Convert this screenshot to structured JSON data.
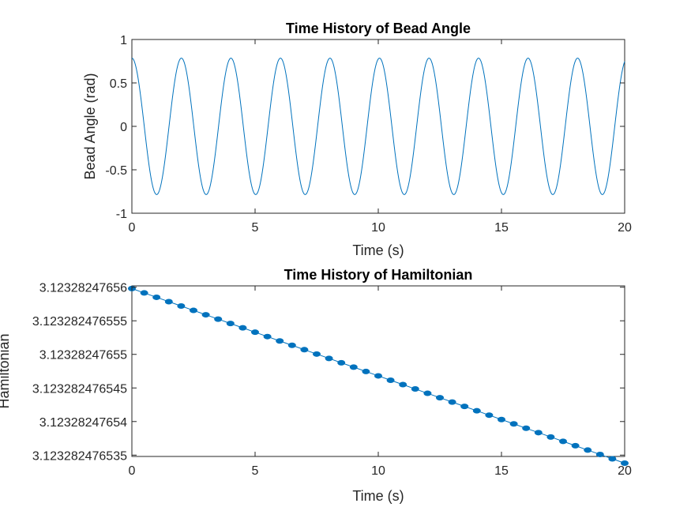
{
  "chart_data": [
    {
      "type": "line",
      "title": "Time History of Bead Angle",
      "xlabel": "Time (s)",
      "ylabel": "Bead Angle (rad)",
      "xlim": [
        0,
        20
      ],
      "ylim": [
        -1,
        1
      ],
      "xticks": [
        0,
        5,
        10,
        15,
        20
      ],
      "xtick_labels": [
        "0",
        "5",
        "10",
        "15",
        "20"
      ],
      "yticks": [
        -1,
        -0.5,
        0,
        0.5,
        1
      ],
      "ytick_labels": [
        "-1",
        "-0.5",
        "0",
        "0.5",
        "1"
      ],
      "grid": false,
      "series": [
        {
          "color": "#0072BD",
          "amplitude": 0.785,
          "period": 2.01,
          "x": [
            0,
            0.5,
            1.0,
            1.5,
            2.0,
            2.5,
            3.0,
            3.5,
            4.0,
            4.5,
            5.0,
            5.5,
            6.0,
            6.5,
            7.0,
            7.5,
            8.0,
            8.5,
            9.0,
            9.5,
            10.0,
            10.5,
            11.0,
            11.5,
            12.0,
            12.5,
            13.0,
            13.5,
            14.0,
            14.5,
            15.0,
            15.5,
            16.0,
            16.5,
            17.0,
            17.5,
            18.0,
            18.5,
            19.0,
            19.5,
            20.0
          ],
          "y": [
            0.785,
            0.0,
            -0.785,
            0.0,
            0.785,
            0.0,
            -0.785,
            0.0,
            0.785,
            0.0,
            -0.785,
            0.0,
            0.785,
            0.0,
            -0.785,
            0.0,
            0.785,
            0.0,
            -0.785,
            0.0,
            0.785,
            0.0,
            -0.785,
            0.0,
            0.785,
            0.0,
            -0.785,
            0.0,
            0.785,
            0.0,
            -0.785,
            0.0,
            0.785,
            0.0,
            -0.785,
            0.0,
            0.785,
            0.0,
            -0.785,
            0.0,
            0.785
          ]
        }
      ]
    },
    {
      "type": "line",
      "title": "Time History of Hamiltonian",
      "xlabel": "Time (s)",
      "ylabel": "Hamiltonian",
      "xlim": [
        0,
        20
      ],
      "ylim": [
        3.1232824765348,
        3.1232824765602
      ],
      "xticks": [
        0,
        5,
        10,
        15,
        20
      ],
      "xtick_labels": [
        "0",
        "5",
        "10",
        "15",
        "20"
      ],
      "yticks": [
        3.12328247654,
        3.123282476545,
        3.12328247655,
        3.123282476555,
        3.12328247656
      ],
      "ytick_labels": [
        "3.12328247654",
        "3.123282476545",
        "3.12328247655",
        "3.123282476555",
        "3.12328247656"
      ],
      "ytick_extra": {
        "value": 3.123282476535,
        "label": "3.123282476535"
      },
      "grid": false,
      "series": [
        {
          "color": "#0072BD",
          "marker": "dot",
          "x": [
            0,
            0.5,
            1.0,
            1.5,
            2.0,
            2.5,
            3.0,
            3.5,
            4.0,
            4.5,
            5.0,
            5.5,
            6.0,
            6.5,
            7.0,
            7.5,
            8.0,
            8.5,
            9.0,
            9.5,
            10.0,
            10.5,
            11.0,
            11.5,
            12.0,
            12.5,
            13.0,
            13.5,
            14.0,
            14.5,
            15.0,
            15.5,
            16.0,
            16.5,
            17.0,
            17.5,
            18.0,
            18.5,
            19.0,
            19.5,
            20.0
          ],
          "y": [
            3.1232824765598,
            3.12328247655915,
            3.1232824765585,
            3.12328247655785,
            3.1232824765572,
            3.12328247655655,
            3.1232824765559,
            3.12328247655525,
            3.1232824765546,
            3.12328247655395,
            3.1232824765533,
            3.12328247655265,
            3.123282476552,
            3.12328247655135,
            3.1232824765507,
            3.12328247655005,
            3.1232824765494,
            3.12328247654875,
            3.1232824765481,
            3.12328247654745,
            3.1232824765468,
            3.12328247654615,
            3.1232824765455,
            3.12328247654485,
            3.1232824765442,
            3.12328247654355,
            3.1232824765429,
            3.12328247654225,
            3.1232824765416,
            3.12328247654095,
            3.1232824765403,
            3.12328247653965,
            3.123282476539,
            3.12328247653835,
            3.1232824765377,
            3.12328247653705,
            3.1232824765364,
            3.12328247653575,
            3.1232824765351,
            3.12328247653445,
            3.1232824765338
          ]
        }
      ]
    }
  ]
}
